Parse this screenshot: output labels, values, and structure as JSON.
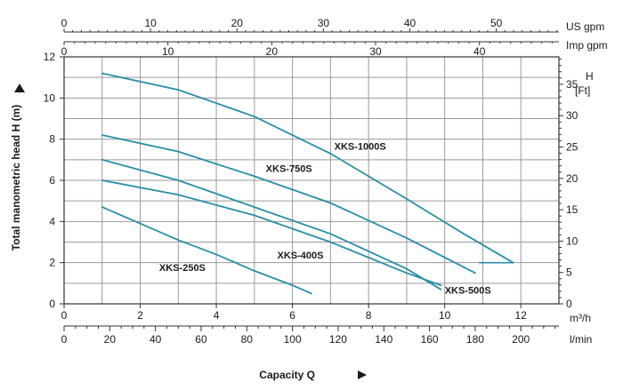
{
  "chart_data": {
    "type": "line",
    "xlabel": "Capacity Q",
    "ylabel": "Total manometric head H (m)",
    "xlim": [
      0,
      13
    ],
    "ylim": [
      0,
      12
    ],
    "x_unit": "m³/h",
    "x_ticks": [
      0,
      2,
      4,
      6,
      8,
      10,
      12
    ],
    "y_ticks": [
      0,
      2,
      4,
      6,
      8,
      10,
      12
    ],
    "secondary_axes": {
      "lpm": {
        "unit": "l/min",
        "ticks": [
          0,
          20,
          40,
          60,
          80,
          100,
          120,
          140,
          160,
          180,
          200
        ]
      },
      "us_gpm": {
        "unit": "US gpm",
        "ticks": [
          0,
          10,
          20,
          30,
          40,
          50
        ]
      },
      "imp_gpm": {
        "unit": "Imp gpm",
        "ticks": [
          0,
          10,
          20,
          30,
          40
        ]
      },
      "feet": {
        "unit_line1": "H",
        "unit_line2": "[Ft]",
        "ticks": [
          0,
          5,
          10,
          15,
          20,
          25,
          30,
          35
        ]
      }
    },
    "series": [
      {
        "name": "XKS-1000S",
        "x": [
          1.0,
          3.0,
          5.0,
          7.0,
          9.0,
          10.5,
          11.8
        ],
        "y": [
          11.2,
          10.4,
          9.1,
          7.3,
          5.1,
          3.4,
          2.0
        ]
      },
      {
        "name": "XKS-750S",
        "x": [
          1.0,
          3.0,
          5.0,
          7.0,
          9.0,
          10.8
        ],
        "y": [
          8.2,
          7.4,
          6.2,
          4.9,
          3.2,
          1.5
        ]
      },
      {
        "name": "XKS-500S",
        "x": [
          1.0,
          3.0,
          5.0,
          7.0,
          9.0,
          9.9
        ],
        "y": [
          7.0,
          6.0,
          4.7,
          3.4,
          1.7,
          0.7
        ]
      },
      {
        "name": "XKS-400S",
        "x": [
          1.0,
          3.0,
          5.0,
          7.0,
          9.0,
          9.9
        ],
        "y": [
          6.0,
          5.3,
          4.3,
          3.0,
          1.5,
          0.9
        ]
      },
      {
        "name": "XKS-250S",
        "x": [
          1.0,
          2.0,
          3.0,
          4.0,
          5.0,
          6.0,
          6.5
        ],
        "y": [
          4.7,
          3.9,
          3.1,
          2.4,
          1.6,
          0.9,
          0.5
        ]
      }
    ],
    "grid": true,
    "legend": "none",
    "line_color": "#2a8fa6"
  }
}
